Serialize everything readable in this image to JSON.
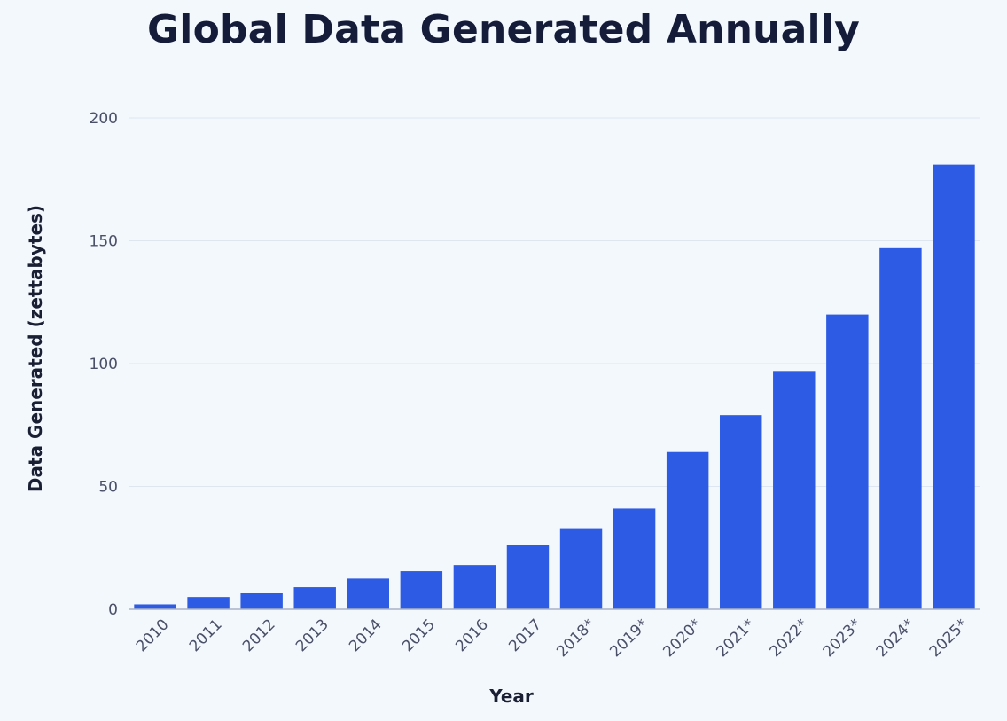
{
  "title": "Global Data Generated Annually",
  "chart_data": {
    "type": "bar",
    "title": "Global Data Generated Annually",
    "xlabel": "Year",
    "ylabel": "Data Generated (zettabytes)",
    "categories": [
      "2010",
      "2011",
      "2012",
      "2013",
      "2014",
      "2015",
      "2016",
      "2017",
      "2018*",
      "2019*",
      "2020*",
      "2021*",
      "2022*",
      "2023*",
      "2024*",
      "2025*"
    ],
    "values": [
      2,
      5,
      6.5,
      9,
      12.5,
      15.5,
      18,
      26,
      33,
      41,
      64,
      79,
      97,
      120,
      147,
      181
    ],
    "ylim": [
      0,
      200
    ],
    "yticks": [
      0,
      50,
      100,
      150,
      200
    ],
    "grid": true,
    "bar_color": "#2d5be3",
    "grid_color": "#dfe6ef",
    "axis_color": "#aab3c5"
  }
}
